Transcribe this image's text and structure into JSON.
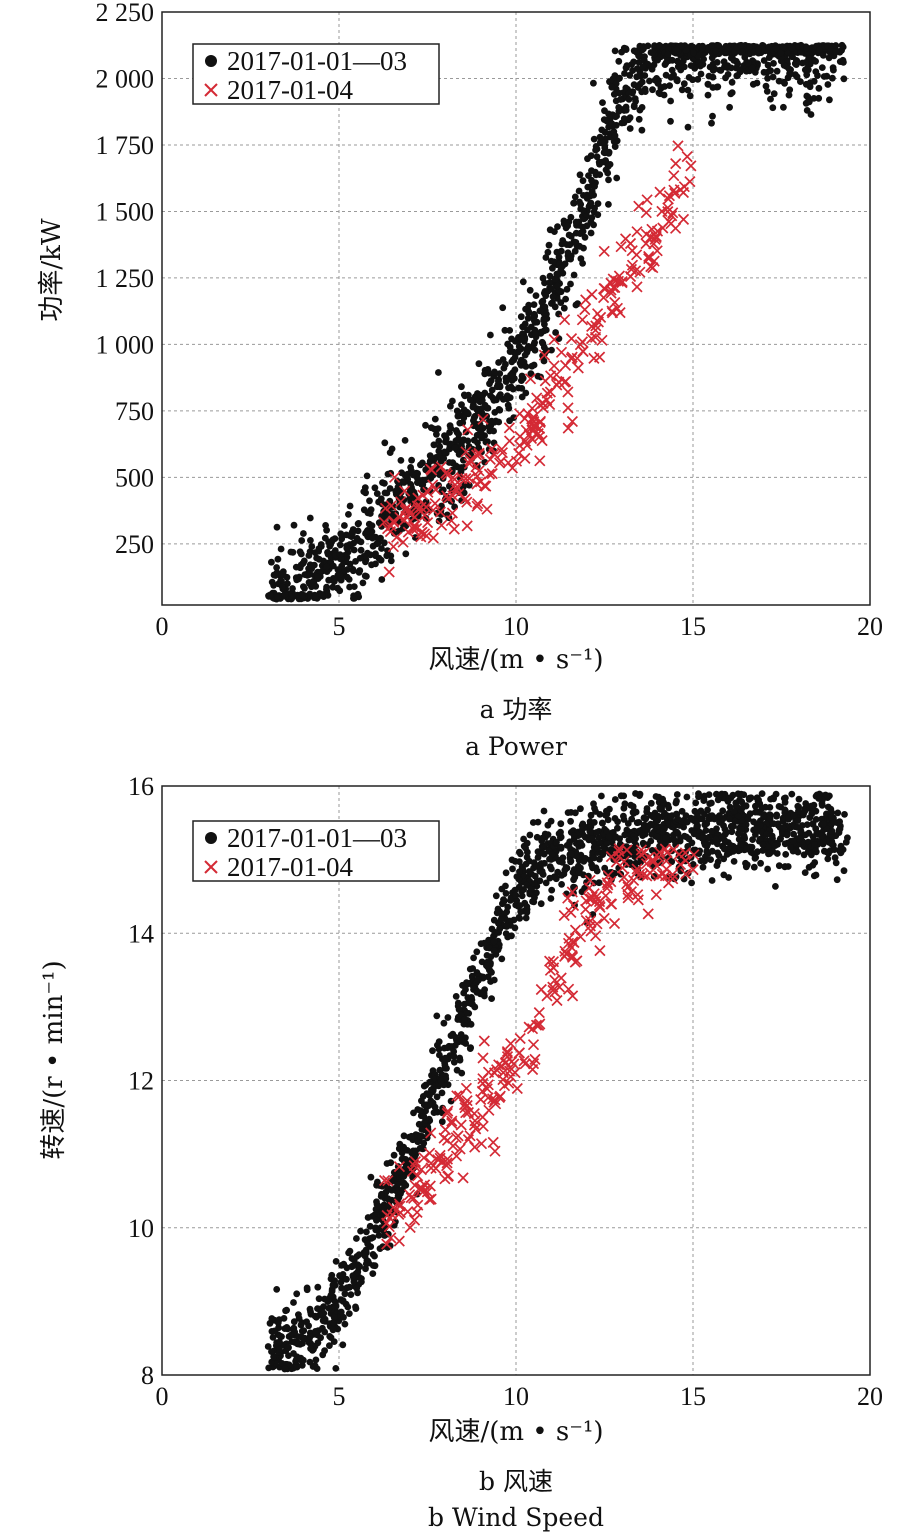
{
  "colors": {
    "series_a": "#111111",
    "series_b": "#d42a35",
    "grid": "#9a9a9a",
    "axis": "#222222"
  },
  "chart_data": [
    {
      "type": "scatter",
      "xlabel": "风速/(m • s⁻¹)",
      "ylabel": "功率/kW",
      "caption_cn": "a  功率",
      "caption_en": "a  Power",
      "xlim": [
        0,
        20
      ],
      "ylim": [
        20,
        2250
      ],
      "xticks": [
        0,
        5,
        10,
        15,
        20
      ],
      "yticks": [
        250,
        500,
        750,
        1000,
        1250,
        1500,
        1750,
        2000,
        2250
      ],
      "ytick_labels": [
        "250",
        "500",
        "750",
        "1 000",
        "1 250",
        "1 500",
        "1 750",
        "2 000",
        "2 250"
      ],
      "grid": true,
      "legend_position": "top-left",
      "series": [
        {
          "name": "2017-01-01—03",
          "marker": "dot",
          "curve": [
            [
              3.0,
              40
            ],
            [
              4.0,
              90
            ],
            [
              5.0,
              190
            ],
            [
              6.0,
              300
            ],
            [
              7.0,
              430
            ],
            [
              8.0,
              560
            ],
            [
              9.0,
              720
            ],
            [
              10.0,
              930
            ],
            [
              11.0,
              1200
            ],
            [
              12.0,
              1530
            ],
            [
              12.8,
              1850
            ],
            [
              13.5,
              2060
            ],
            [
              14.5,
              2115
            ],
            [
              17.0,
              2125
            ],
            [
              19.2,
              2125
            ]
          ],
          "spread": 120,
          "saturation": 2125,
          "count": 1700,
          "x_range": [
            3.0,
            19.2
          ]
        },
        {
          "name": "2017-01-04",
          "marker": "cross",
          "curve": [
            [
              6.2,
              300
            ],
            [
              7.0,
              360
            ],
            [
              8.0,
              430
            ],
            [
              9.0,
              510
            ],
            [
              10.0,
              620
            ],
            [
              11.0,
              800
            ],
            [
              12.0,
              1050
            ],
            [
              13.0,
              1250
            ],
            [
              14.0,
              1450
            ],
            [
              14.8,
              1610
            ]
          ],
          "spread": 95,
          "saturation": 2200,
          "count": 260,
          "x_range": [
            6.2,
            14.8
          ]
        }
      ]
    },
    {
      "type": "scatter",
      "xlabel": "风速/(m • s⁻¹)",
      "ylabel": "转速/(r • min⁻¹)",
      "caption_cn": "b  风速",
      "caption_en": "b  Wind Speed",
      "xlim": [
        0,
        20
      ],
      "ylim": [
        8,
        16
      ],
      "xticks": [
        0,
        5,
        10,
        15,
        20
      ],
      "yticks": [
        8,
        10,
        12,
        14,
        16
      ],
      "ytick_labels": [
        "8",
        "10",
        "12",
        "14",
        "16"
      ],
      "grid": true,
      "legend_position": "top-left",
      "series": [
        {
          "name": "2017-01-01—03",
          "marker": "dot",
          "curve": [
            [
              3.0,
              8.35
            ],
            [
              4.0,
              8.5
            ],
            [
              5.0,
              8.9
            ],
            [
              6.0,
              9.9
            ],
            [
              7.0,
              11.0
            ],
            [
              8.0,
              12.2
            ],
            [
              9.0,
              13.4
            ],
            [
              10.0,
              14.6
            ],
            [
              11.0,
              15.0
            ],
            [
              12.0,
              15.15
            ],
            [
              13.0,
              15.3
            ],
            [
              14.0,
              15.4
            ],
            [
              16.0,
              15.45
            ],
            [
              19.2,
              15.35
            ]
          ],
          "spread": 0.35,
          "saturation": 15.9,
          "count": 1700,
          "x_range": [
            3.0,
            19.2
          ]
        },
        {
          "name": "2017-01-04",
          "marker": "cross",
          "curve": [
            [
              6.2,
              10.0
            ],
            [
              7.0,
              10.5
            ],
            [
              8.0,
              11.0
            ],
            [
              9.0,
              11.7
            ],
            [
              10.0,
              12.3
            ],
            [
              11.0,
              13.2
            ],
            [
              12.0,
              14.3
            ],
            [
              13.0,
              14.85
            ],
            [
              14.0,
              15.0
            ],
            [
              14.8,
              15.1
            ]
          ],
          "spread": 0.35,
          "saturation": 15.15,
          "count": 260,
          "x_range": [
            6.2,
            14.8
          ]
        }
      ]
    }
  ]
}
